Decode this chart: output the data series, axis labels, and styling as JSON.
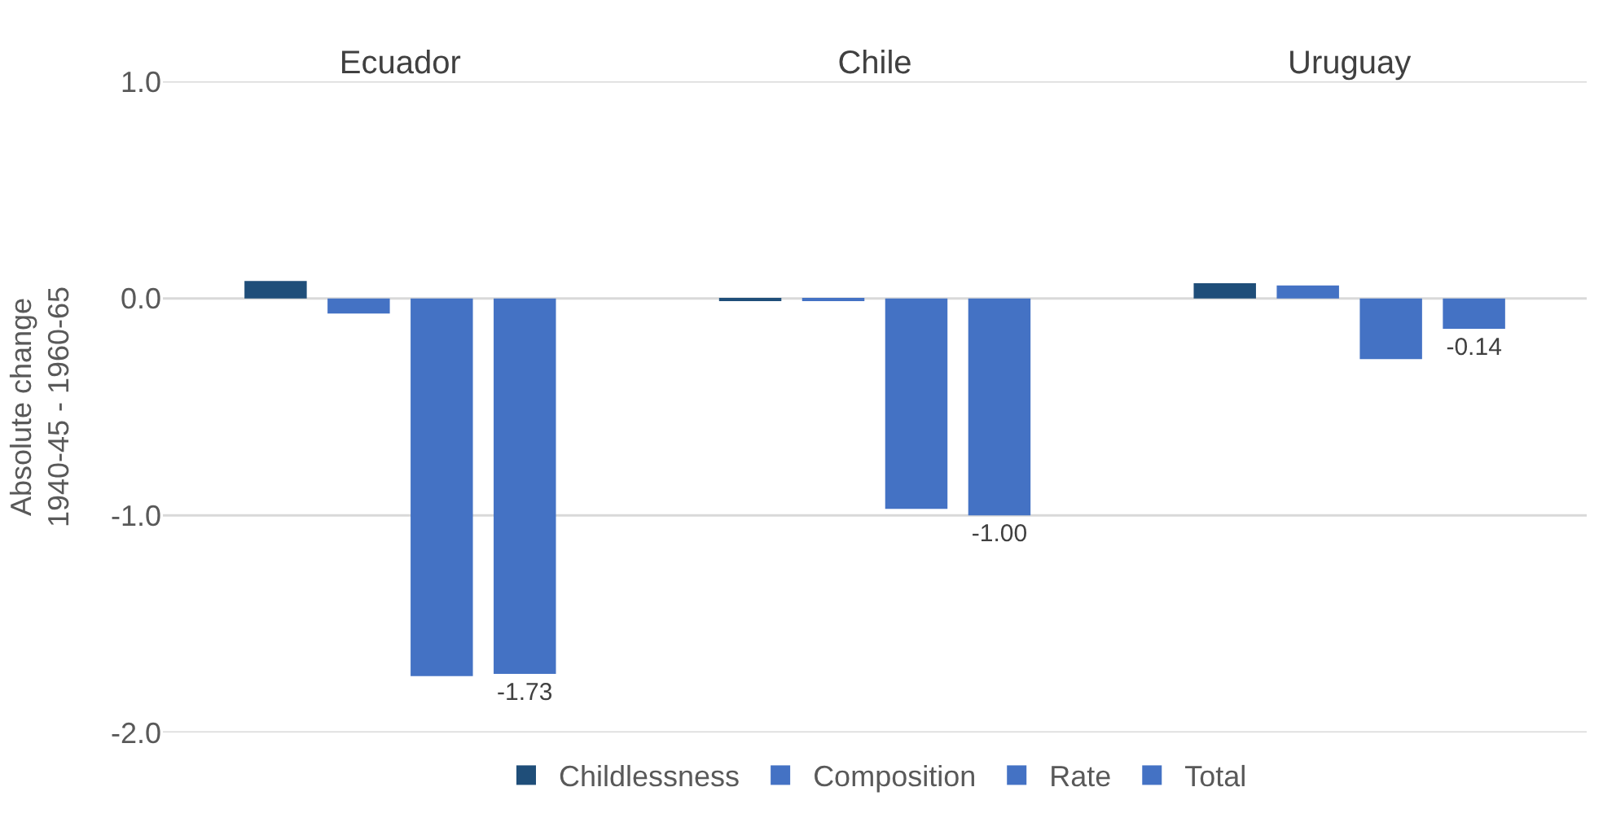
{
  "chart_data": {
    "type": "bar",
    "ylabel": "Absolute change\n1940-45 - 1960-65",
    "categories": [
      "Ecuador",
      "Chile",
      "Uruguay"
    ],
    "series": [
      {
        "name": "Childlessness",
        "color": "#1f4e79",
        "values": [
          0.08,
          -0.01,
          0.07
        ]
      },
      {
        "name": "Composition",
        "color": "#4472c4",
        "values": [
          -0.07,
          -0.01,
          0.06
        ]
      },
      {
        "name": "Rate",
        "color": "#4472c4",
        "values": [
          -1.74,
          -0.97,
          -0.28
        ]
      },
      {
        "name": "Total",
        "color": "#4472c4",
        "values": [
          -1.73,
          -1.0,
          -0.14
        ],
        "value_labels": [
          "-1.73",
          "-1.00",
          "-0.14"
        ]
      }
    ],
    "ylim": [
      -2.0,
      1.0
    ],
    "yticks": [
      {
        "value": -2,
        "label": "-2.0"
      },
      {
        "value": -1,
        "label": "-1.0"
      },
      {
        "value": 0,
        "label": "0.0"
      },
      {
        "value": 1,
        "label": "1.0"
      }
    ],
    "grid": "y",
    "legend": "bottom"
  }
}
